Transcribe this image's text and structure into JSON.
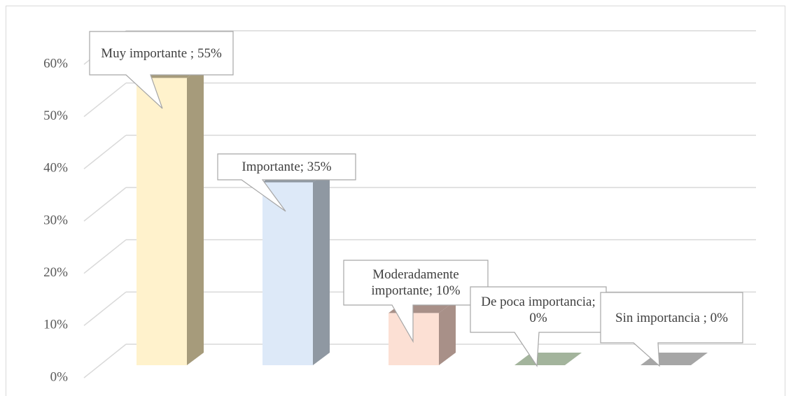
{
  "chart_data": {
    "type": "bar3d",
    "values": [
      55,
      35,
      10,
      0,
      0
    ],
    "value_labels": [
      "Muy importante ; 55%",
      "Importante; 35%",
      "Moderadamente importante; 10%",
      "De poca importancia; 0%",
      "Sin importancia ; 0%"
    ],
    "colors": [
      [
        "#fff2cc",
        "#a69b7b"
      ],
      [
        "#dde9f8",
        "#8f98a2"
      ],
      [
        "#fce0d4",
        "#a89088"
      ],
      [
        "#c5d5bd",
        "#a3b49c"
      ],
      [
        "#c8c8c8",
        "#a6a6a6"
      ]
    ],
    "ylim": [
      0,
      60
    ],
    "yticks": [
      {
        "value": 0,
        "label": "0%"
      },
      {
        "value": 10,
        "label": "10%"
      },
      {
        "value": 20,
        "label": "20%"
      },
      {
        "value": 30,
        "label": "30%"
      },
      {
        "value": 40,
        "label": "40%"
      },
      {
        "value": 50,
        "label": "50%"
      },
      {
        "value": 60,
        "label": "60%"
      }
    ],
    "grid": true
  }
}
